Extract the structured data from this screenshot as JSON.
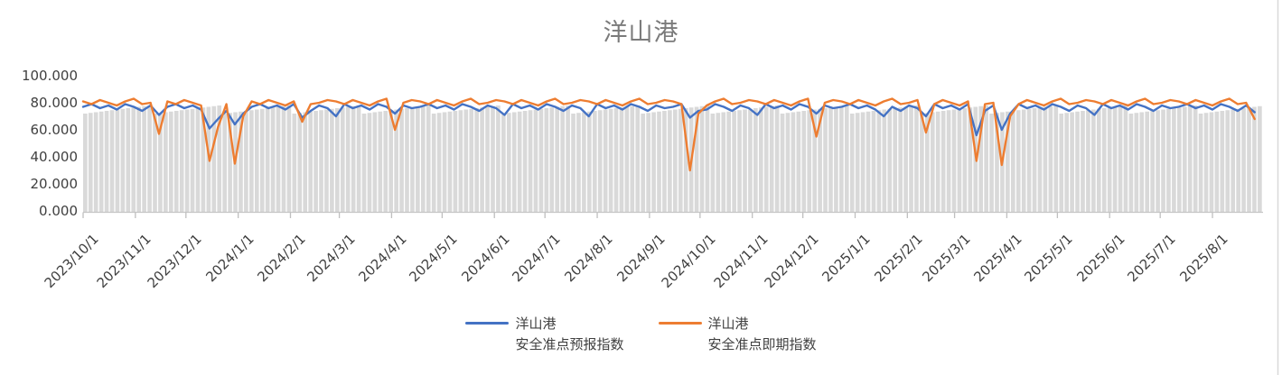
{
  "title": "洋山港",
  "legend": {
    "entries": [
      {
        "line1": "洋山港",
        "line2": "安全准点预报指数",
        "color": "#4472C4"
      },
      {
        "line1": "洋山港",
        "line2": "安全准点即期指数",
        "color": "#ED7D31"
      }
    ]
  },
  "colors": {
    "forecast_line": "#4472C4",
    "spot_line": "#ED7D31",
    "gray_bars": "#D9D9D9",
    "axis": "#C6C6C6",
    "tick": "#BFBFBF",
    "labels": "#404040",
    "title": "#7B7B7B",
    "right_border": "#D9D9D9"
  },
  "chart_data": {
    "type": "line",
    "title": "洋山港",
    "ylim": [
      0,
      100
    ],
    "y_ticks": [
      {
        "label": "100.000",
        "value": 100
      },
      {
        "label": "80.000",
        "value": 80
      },
      {
        "label": "60.000",
        "value": 60
      },
      {
        "label": "40.000",
        "value": 40
      },
      {
        "label": "20.000",
        "value": 20
      },
      {
        "label": "0.000",
        "value": 0
      }
    ],
    "x_ticks": [
      {
        "label": "2023/10/1",
        "day": 0
      },
      {
        "label": "2023/11/1",
        "day": 31
      },
      {
        "label": "2023/12/1",
        "day": 61
      },
      {
        "label": "2024/1/1",
        "day": 92
      },
      {
        "label": "2024/2/1",
        "day": 123
      },
      {
        "label": "2024/3/1",
        "day": 152
      },
      {
        "label": "2024/4/1",
        "day": 183
      },
      {
        "label": "2024/5/1",
        "day": 213
      },
      {
        "label": "2024/6/1",
        "day": 244
      },
      {
        "label": "2024/7/1",
        "day": 274
      },
      {
        "label": "2024/8/1",
        "day": 305
      },
      {
        "label": "2024/9/1",
        "day": 336
      },
      {
        "label": "2024/10/1",
        "day": 366
      },
      {
        "label": "2024/11/1",
        "day": 397
      },
      {
        "label": "2024/12/1",
        "day": 427
      },
      {
        "label": "2025/1/1",
        "day": 458
      },
      {
        "label": "2025/2/1",
        "day": 489
      },
      {
        "label": "2025/3/1",
        "day": 517
      },
      {
        "label": "2025/4/1",
        "day": 548
      },
      {
        "label": "2025/5/1",
        "day": 578
      },
      {
        "label": "2025/6/1",
        "day": 609
      },
      {
        "label": "2025/7/1",
        "day": 639
      },
      {
        "label": "2025/8/1",
        "day": 670
      }
    ],
    "span_days": 700,
    "sample_step_days": 5,
    "series": [
      {
        "name": "洋山港安全准点预报指数",
        "color": "#4472C4",
        "values": [
          77,
          79,
          76,
          78,
          75,
          79,
          77,
          74,
          78,
          71,
          77,
          79,
          76,
          78,
          75,
          61,
          68,
          74,
          64,
          72,
          77,
          79,
          76,
          78,
          75,
          79,
          69,
          74,
          78,
          76,
          70,
          79,
          76,
          78,
          75,
          79,
          77,
          72,
          78,
          76,
          77,
          79,
          76,
          78,
          75,
          79,
          77,
          74,
          78,
          76,
          71,
          79,
          76,
          78,
          75,
          79,
          77,
          74,
          78,
          76,
          70,
          79,
          76,
          78,
          75,
          79,
          77,
          74,
          78,
          76,
          77,
          79,
          69,
          74,
          75,
          79,
          77,
          74,
          78,
          76,
          71,
          79,
          76,
          78,
          75,
          79,
          77,
          72,
          78,
          76,
          77,
          79,
          76,
          78,
          75,
          70,
          77,
          74,
          78,
          76,
          70,
          79,
          76,
          78,
          75,
          79,
          56,
          74,
          78,
          60,
          72,
          79,
          76,
          78,
          75,
          79,
          77,
          74,
          78,
          76,
          71,
          79,
          76,
          78,
          75,
          79,
          77,
          74,
          78,
          76,
          77,
          79,
          76,
          78,
          75,
          79,
          77,
          74,
          78,
          73
        ]
      },
      {
        "name": "洋山港安全准点即期指数",
        "color": "#ED7D31",
        "values": [
          81,
          79,
          82,
          80,
          78,
          81,
          83,
          79,
          80,
          57,
          81,
          79,
          82,
          80,
          78,
          37,
          62,
          79,
          35,
          70,
          81,
          79,
          82,
          80,
          78,
          81,
          66,
          79,
          80,
          82,
          81,
          79,
          82,
          80,
          78,
          81,
          83,
          60,
          80,
          82,
          81,
          79,
          82,
          80,
          78,
          81,
          83,
          79,
          80,
          82,
          81,
          79,
          82,
          80,
          78,
          81,
          83,
          79,
          80,
          82,
          81,
          79,
          82,
          80,
          78,
          81,
          83,
          79,
          80,
          82,
          81,
          79,
          30,
          72,
          78,
          81,
          83,
          79,
          80,
          82,
          81,
          79,
          82,
          80,
          78,
          81,
          83,
          55,
          80,
          82,
          81,
          79,
          82,
          80,
          78,
          81,
          83,
          79,
          80,
          82,
          58,
          79,
          82,
          80,
          78,
          81,
          37,
          79,
          80,
          34,
          70,
          79,
          82,
          80,
          78,
          81,
          83,
          79,
          80,
          82,
          81,
          79,
          82,
          80,
          78,
          81,
          83,
          79,
          80,
          82,
          81,
          79,
          82,
          80,
          78,
          81,
          83,
          79,
          80,
          68
        ]
      }
    ],
    "gray_bars": {
      "type": "column",
      "count": 220,
      "value_min": 72,
      "value_max": 78,
      "color": "#D9D9D9"
    }
  }
}
